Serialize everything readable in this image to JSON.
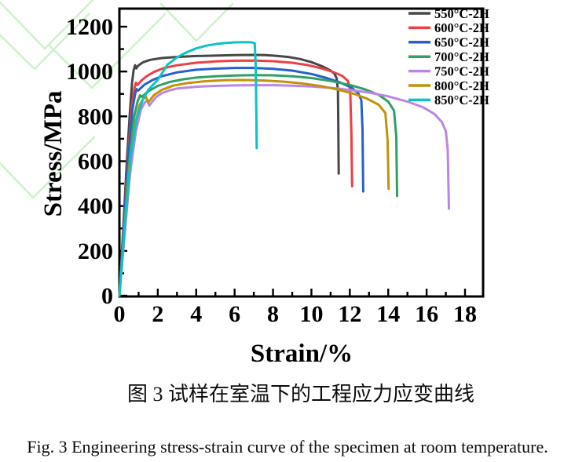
{
  "figure": {
    "caption_cn": "图 3 试样在室温下的工程应力应变曲线",
    "caption_en": "Fig. 3 Engineering stress-strain curve of the specimen at room temperature."
  },
  "chart_data": {
    "type": "line",
    "title": "",
    "xlabel": "Strain/%",
    "ylabel": "Stress/MPa",
    "xlim": [
      0,
      18.95
    ],
    "ylim": [
      0,
      1285
    ],
    "xticks_major": [
      0,
      2,
      4,
      6,
      8,
      10,
      12,
      14,
      16,
      18
    ],
    "xticks_minor": [
      1,
      3,
      5,
      7,
      9,
      11,
      13,
      15,
      17
    ],
    "yticks_major": [
      0,
      200,
      400,
      600,
      800,
      1000,
      1200
    ],
    "yticks_minor": [
      100,
      300,
      500,
      700,
      900,
      1100
    ],
    "grid": false,
    "legend_position": "top-right-inside",
    "series": [
      {
        "name": "550°C-2H",
        "color": "#474747",
        "points": [
          [
            0,
            0
          ],
          [
            0.2,
            300
          ],
          [
            0.4,
            620
          ],
          [
            0.55,
            820
          ],
          [
            0.66,
            950
          ],
          [
            0.74,
            1005
          ],
          [
            0.82,
            1028
          ],
          [
            0.88,
            1014
          ],
          [
            0.95,
            1023
          ],
          [
            1.05,
            1031
          ],
          [
            1.25,
            1042
          ],
          [
            1.6,
            1052
          ],
          [
            2.2,
            1060
          ],
          [
            3,
            1065
          ],
          [
            4,
            1069
          ],
          [
            5,
            1071
          ],
          [
            6,
            1073
          ],
          [
            7,
            1074
          ],
          [
            7.6,
            1073
          ],
          [
            8.2,
            1070
          ],
          [
            8.8,
            1065
          ],
          [
            9.4,
            1056
          ],
          [
            10,
            1042
          ],
          [
            10.6,
            1022
          ],
          [
            11,
            1004
          ],
          [
            11.2,
            990
          ],
          [
            11.32,
            968
          ],
          [
            11.38,
            915
          ],
          [
            11.4,
            750
          ],
          [
            11.42,
            545
          ]
        ]
      },
      {
        "name": "600°C-2H",
        "color": "#ee3f43",
        "points": [
          [
            0,
            0
          ],
          [
            0.2,
            280
          ],
          [
            0.45,
            620
          ],
          [
            0.65,
            850
          ],
          [
            0.78,
            925
          ],
          [
            0.86,
            950
          ],
          [
            0.93,
            940
          ],
          [
            1.02,
            948
          ],
          [
            1.15,
            960
          ],
          [
            1.4,
            978
          ],
          [
            1.8,
            998
          ],
          [
            2.3,
            1015
          ],
          [
            3,
            1028
          ],
          [
            4,
            1039
          ],
          [
            5,
            1045
          ],
          [
            6,
            1048
          ],
          [
            7,
            1049
          ],
          [
            8,
            1046
          ],
          [
            9,
            1039
          ],
          [
            9.8,
            1029
          ],
          [
            10.5,
            1015
          ],
          [
            11.1,
            999
          ],
          [
            11.6,
            981
          ],
          [
            11.9,
            958
          ],
          [
            12.02,
            920
          ],
          [
            12.08,
            730
          ],
          [
            12.12,
            488
          ]
        ]
      },
      {
        "name": "650°C-2H",
        "color": "#2560cb",
        "points": [
          [
            0,
            0
          ],
          [
            0.2,
            270
          ],
          [
            0.45,
            600
          ],
          [
            0.68,
            830
          ],
          [
            0.82,
            900
          ],
          [
            0.9,
            922
          ],
          [
            0.98,
            915
          ],
          [
            1.1,
            925
          ],
          [
            1.3,
            941
          ],
          [
            1.7,
            961
          ],
          [
            2.2,
            979
          ],
          [
            3,
            996
          ],
          [
            4,
            1008
          ],
          [
            5,
            1013
          ],
          [
            6,
            1016
          ],
          [
            7,
            1016
          ],
          [
            8,
            1012
          ],
          [
            9,
            1004
          ],
          [
            10,
            989
          ],
          [
            10.8,
            971
          ],
          [
            11.5,
            951
          ],
          [
            12.1,
            928
          ],
          [
            12.45,
            902
          ],
          [
            12.6,
            872
          ],
          [
            12.66,
            740
          ],
          [
            12.7,
            465
          ]
        ]
      },
      {
        "name": "700°C-2H",
        "color": "#31a065",
        "points": [
          [
            0,
            0
          ],
          [
            0.22,
            260
          ],
          [
            0.5,
            580
          ],
          [
            0.75,
            790
          ],
          [
            0.95,
            868
          ],
          [
            1.08,
            894
          ],
          [
            1.16,
            887
          ],
          [
            1.3,
            897
          ],
          [
            1.55,
            914
          ],
          [
            2,
            936
          ],
          [
            2.6,
            953
          ],
          [
            3.3,
            965
          ],
          [
            4,
            973
          ],
          [
            5,
            979
          ],
          [
            6,
            982
          ],
          [
            7,
            984
          ],
          [
            8,
            983
          ],
          [
            9,
            979
          ],
          [
            10,
            971
          ],
          [
            11,
            958
          ],
          [
            12,
            940
          ],
          [
            12.8,
            920
          ],
          [
            13.5,
            896
          ],
          [
            14,
            866
          ],
          [
            14.3,
            826
          ],
          [
            14.42,
            710
          ],
          [
            14.46,
            445
          ]
        ]
      },
      {
        "name": "750°C-2H",
        "color": "#bb86e4",
        "points": [
          [
            0,
            0
          ],
          [
            0.24,
            240
          ],
          [
            0.55,
            540
          ],
          [
            0.85,
            730
          ],
          [
            1.12,
            830
          ],
          [
            1.32,
            862
          ],
          [
            1.45,
            870
          ],
          [
            1.56,
            848
          ],
          [
            1.68,
            862
          ],
          [
            1.9,
            885
          ],
          [
            2.2,
            903
          ],
          [
            2.6,
            916
          ],
          [
            3,
            924
          ],
          [
            4,
            932
          ],
          [
            5,
            936
          ],
          [
            6,
            938
          ],
          [
            7,
            939
          ],
          [
            8,
            939
          ],
          [
            9,
            937
          ],
          [
            10,
            933
          ],
          [
            11,
            927
          ],
          [
            12,
            918
          ],
          [
            13,
            906
          ],
          [
            14,
            889
          ],
          [
            15,
            866
          ],
          [
            15.8,
            841
          ],
          [
            16.4,
            811
          ],
          [
            16.8,
            774
          ],
          [
            17,
            733
          ],
          [
            17.1,
            650
          ],
          [
            17.16,
            388
          ]
        ]
      },
      {
        "name": "800°C-2H",
        "color": "#c39209",
        "points": [
          [
            0,
            0
          ],
          [
            0.22,
            250
          ],
          [
            0.5,
            560
          ],
          [
            0.8,
            760
          ],
          [
            1.05,
            850
          ],
          [
            1.25,
            880
          ],
          [
            1.38,
            888
          ],
          [
            1.5,
            862
          ],
          [
            1.6,
            873
          ],
          [
            1.8,
            895
          ],
          [
            2.2,
            918
          ],
          [
            2.8,
            937
          ],
          [
            3.6,
            949
          ],
          [
            4.5,
            957
          ],
          [
            5.5,
            961
          ],
          [
            6.5,
            962
          ],
          [
            7.5,
            960
          ],
          [
            8.5,
            955
          ],
          [
            9.5,
            947
          ],
          [
            10.5,
            935
          ],
          [
            11.4,
            919
          ],
          [
            12.2,
            901
          ],
          [
            12.9,
            879
          ],
          [
            13.5,
            852
          ],
          [
            13.85,
            815
          ],
          [
            13.97,
            690
          ],
          [
            14.02,
            477
          ]
        ]
      },
      {
        "name": "850°C-2H",
        "color": "#0ac4c4",
        "points": [
          [
            0,
            0
          ],
          [
            0.3,
            330
          ],
          [
            0.6,
            630
          ],
          [
            0.9,
            790
          ],
          [
            1.2,
            870
          ],
          [
            1.5,
            918
          ],
          [
            2,
            963
          ],
          [
            2.5,
            1030
          ],
          [
            3,
            1063
          ],
          [
            3.5,
            1086
          ],
          [
            4,
            1103
          ],
          [
            4.5,
            1115
          ],
          [
            5,
            1122
          ],
          [
            5.5,
            1127
          ],
          [
            6,
            1130
          ],
          [
            6.5,
            1131
          ],
          [
            6.9,
            1130
          ],
          [
            7.05,
            1126
          ],
          [
            7.1,
            1020
          ],
          [
            7.13,
            820
          ],
          [
            7.15,
            658
          ]
        ]
      }
    ]
  },
  "decor": {
    "watermark_color": "#cdf2ca",
    "axis_color": "#000000"
  }
}
